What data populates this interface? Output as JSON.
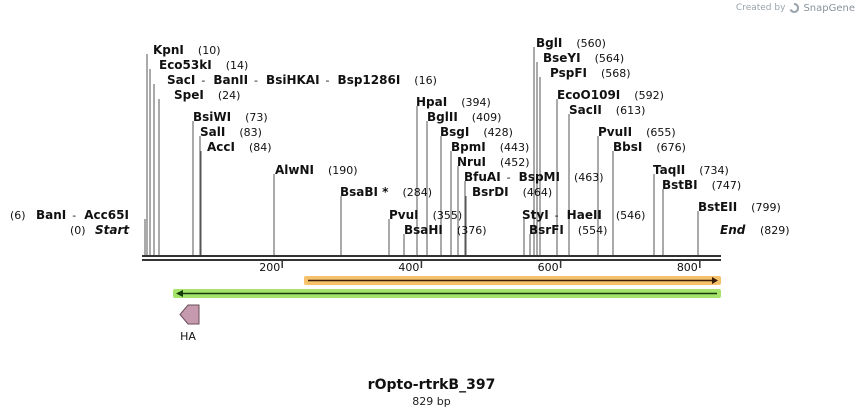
{
  "credit": {
    "prefix": "Created by",
    "brand": "SnapGene"
  },
  "map": {
    "name": "rOpto-rtrkB_397",
    "length_label": "829 bp",
    "length": 829,
    "ticks": [
      "200",
      "400",
      "600",
      "800"
    ],
    "tick_values": [
      200,
      400,
      600,
      800
    ],
    "start_label": "Start",
    "start_pos": "(0)",
    "end_label": "End",
    "end_pos": "(829)",
    "feature_label": "HA",
    "colors": {
      "backbone": "#333333",
      "orange_feature": "#f5c16b",
      "green_feature": "#a6e36b",
      "ha": "#c69aae",
      "leader": "#555555"
    }
  },
  "sites": [
    {
      "name": "BanI",
      "pos": "(6)",
      "join": "Acc65I"
    },
    {
      "name": "KpnI",
      "pos": "(10)"
    },
    {
      "name": "Eco53kI",
      "pos": "(14)"
    },
    {
      "name": "SacI",
      "pos": "(16)",
      "join": "BanII",
      "join2": "BsiHKAI",
      "join3": "Bsp1286I"
    },
    {
      "name": "SpeI",
      "pos": "(24)"
    },
    {
      "name": "BsiWI",
      "pos": "(73)"
    },
    {
      "name": "SalI",
      "pos": "(83)"
    },
    {
      "name": "AccI",
      "pos": "(84)"
    },
    {
      "name": "AlwNI",
      "pos": "(190)"
    },
    {
      "name": "BsaBI *",
      "pos": "(284)"
    },
    {
      "name": "PvuI",
      "pos": "(355)"
    },
    {
      "name": "BsaHI",
      "pos": "(376)"
    },
    {
      "name": "HpaI",
      "pos": "(394)"
    },
    {
      "name": "BglII",
      "pos": "(409)"
    },
    {
      "name": "BsgI",
      "pos": "(428)"
    },
    {
      "name": "BpmI",
      "pos": "(443)"
    },
    {
      "name": "NruI",
      "pos": "(452)"
    },
    {
      "name": "BfuAI",
      "pos": "(463)",
      "join": "BspMI"
    },
    {
      "name": "BsrDI",
      "pos": "(464)"
    },
    {
      "name": "StyI",
      "pos": "(546)",
      "join": "HaeII"
    },
    {
      "name": "BsrFI",
      "pos": "(554)"
    },
    {
      "name": "BglI",
      "pos": "(560)"
    },
    {
      "name": "BseYI",
      "pos": "(564)"
    },
    {
      "name": "PspFI",
      "pos": "(568)"
    },
    {
      "name": "EcoO109I",
      "pos": "(592)"
    },
    {
      "name": "SacII",
      "pos": "(613)"
    },
    {
      "name": "PvuII",
      "pos": "(655)"
    },
    {
      "name": "BbsI",
      "pos": "(676)"
    },
    {
      "name": "TaqII",
      "pos": "(734)"
    },
    {
      "name": "BstBI",
      "pos": "(747)"
    },
    {
      "name": "BstEII",
      "pos": "(799)"
    }
  ]
}
